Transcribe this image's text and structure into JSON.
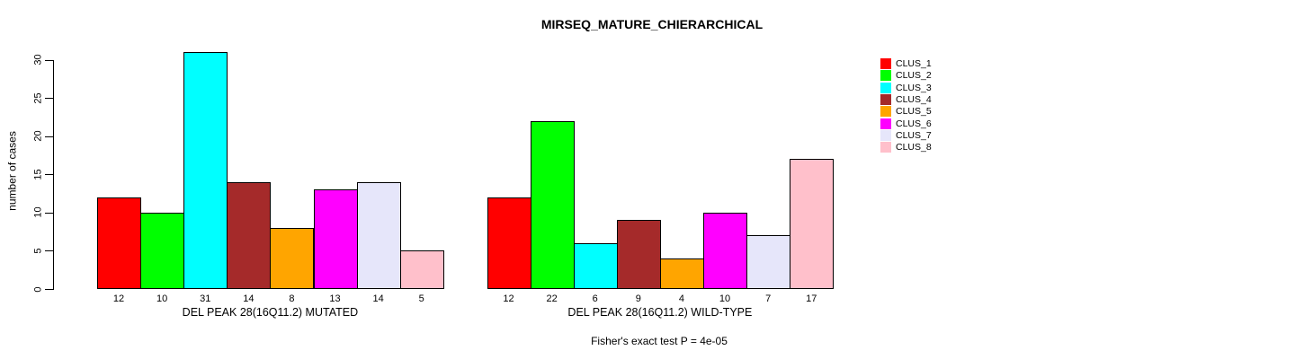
{
  "chart_data": {
    "type": "bar",
    "title": "MIRSEQ_MATURE_CHIERARCHICAL",
    "xlabel": "",
    "ylabel": "number of cases",
    "ylim": [
      0,
      31
    ],
    "yticks": [
      0,
      5,
      10,
      15,
      20,
      25,
      30
    ],
    "grid": false,
    "legend_position": "right",
    "categories": [
      "CLUS_1",
      "CLUS_2",
      "CLUS_3",
      "CLUS_4",
      "CLUS_5",
      "CLUS_6",
      "CLUS_7",
      "CLUS_8"
    ],
    "groups": [
      {
        "label": "DEL PEAK 28(16Q11.2) MUTATED",
        "values": [
          12,
          10,
          31,
          14,
          8,
          13,
          14,
          5
        ]
      },
      {
        "label": "DEL PEAK 28(16Q11.2) WILD-TYPE",
        "values": [
          12,
          22,
          6,
          9,
          4,
          10,
          7,
          17
        ]
      }
    ],
    "legend": [
      {
        "label": "CLUS_1",
        "color": "#FF0000"
      },
      {
        "label": "CLUS_2",
        "color": "#00FF00"
      },
      {
        "label": "CLUS_3",
        "color": "#00FFFF"
      },
      {
        "label": "CLUS_4",
        "color": "#A52A2A"
      },
      {
        "label": "CLUS_5",
        "color": "#FFA500"
      },
      {
        "label": "CLUS_6",
        "color": "#FF00FF"
      },
      {
        "label": "CLUS_7",
        "color": "#E6E6FA"
      },
      {
        "label": "CLUS_8",
        "color": "#FFC0CB"
      }
    ],
    "annotation": "Fisher's exact test P = 4e-05",
    "bar_border_color": "#000000",
    "background_color": "#FFFFFF"
  }
}
